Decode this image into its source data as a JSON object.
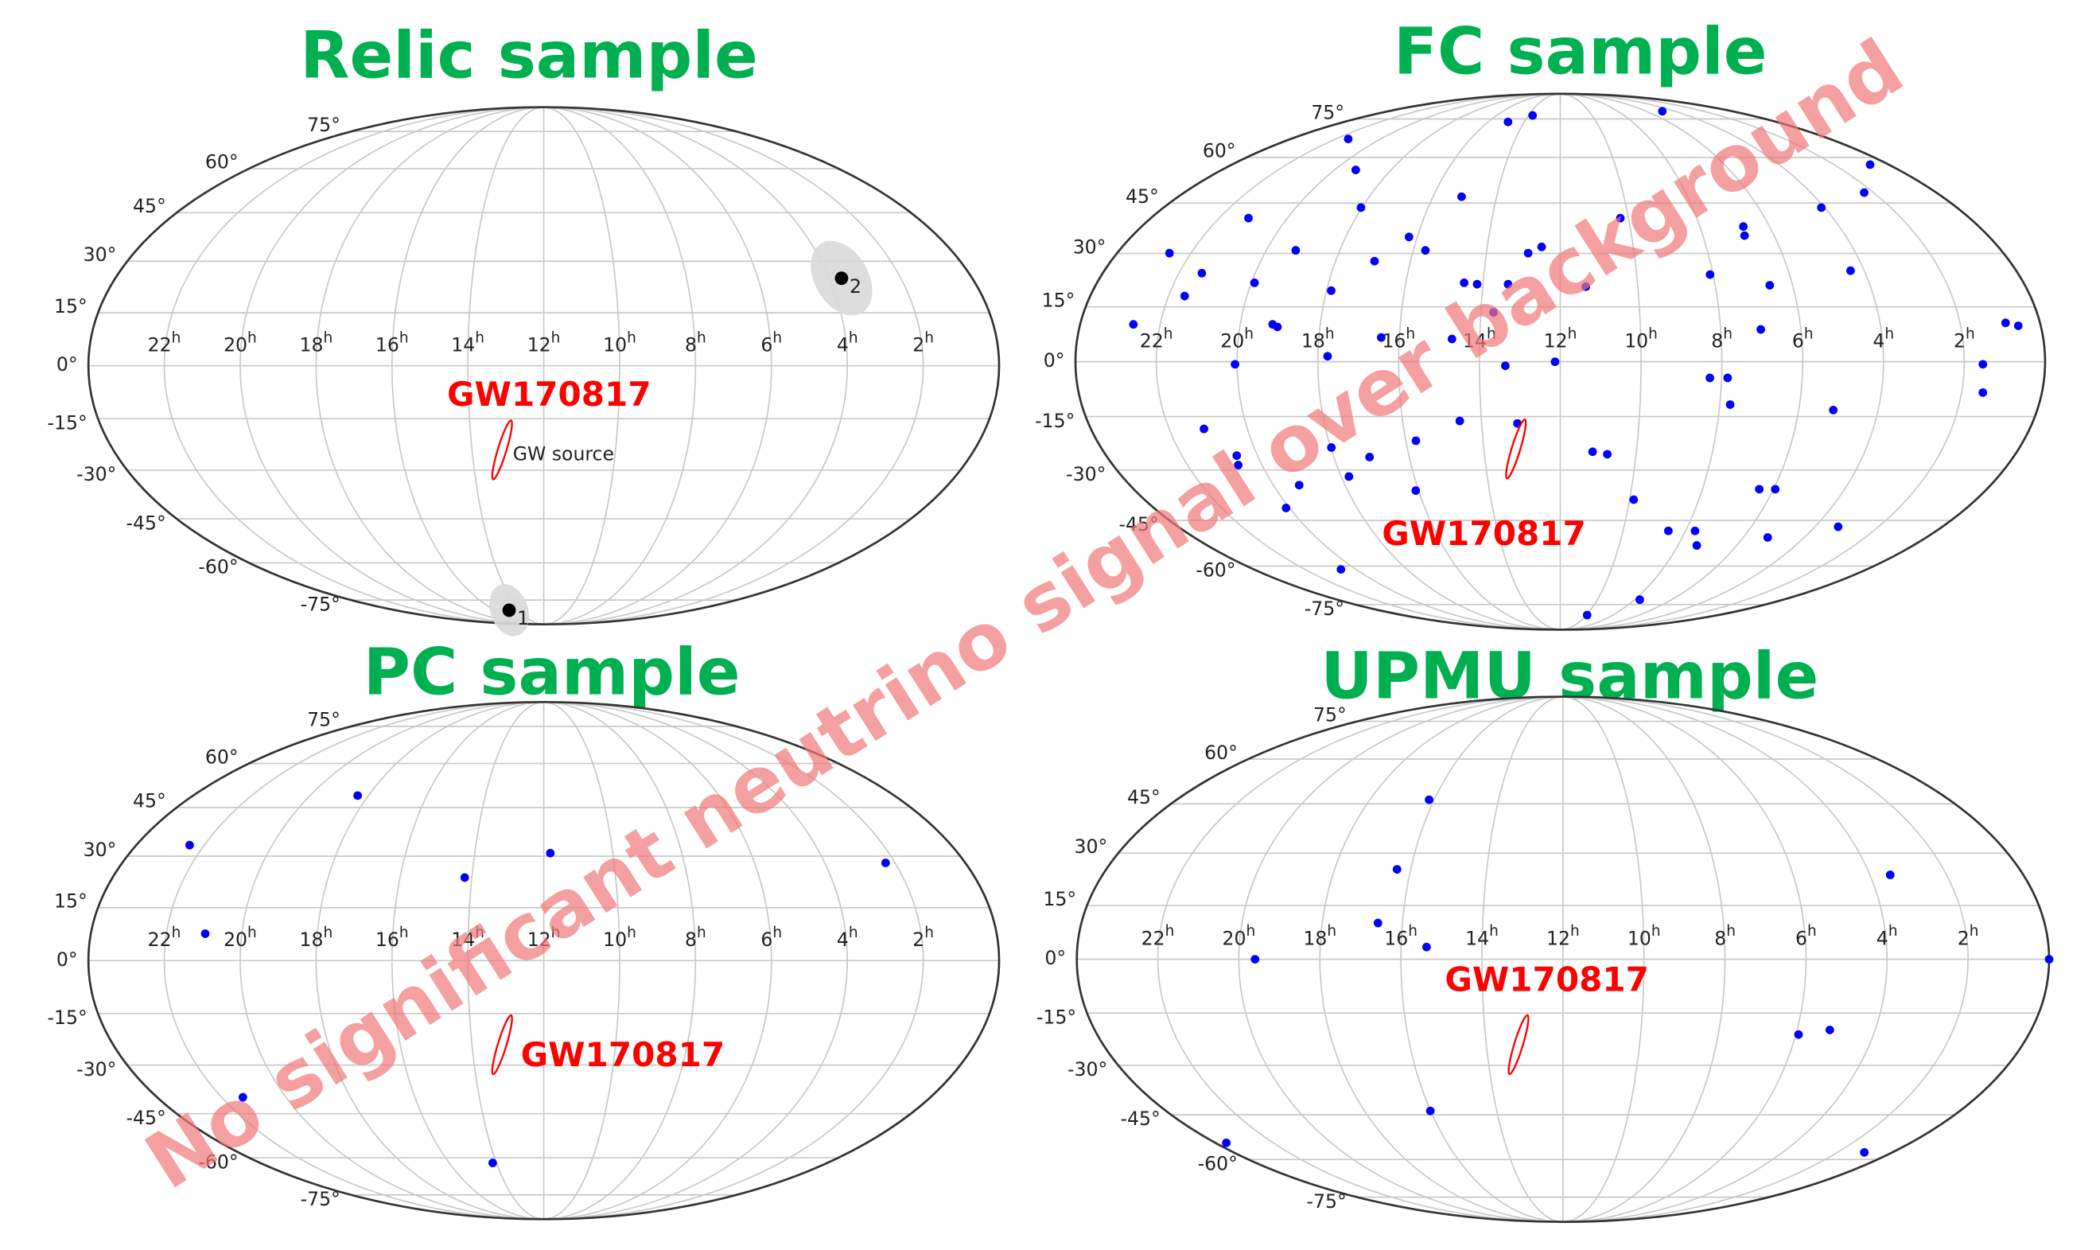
{
  "annotation": "No significant neutrino signal over background",
  "chart_data": [
    {
      "type": "scatter",
      "projection": "mollweide",
      "title": "Relic sample",
      "xlim": [
        24,
        0
      ],
      "ylim": [
        -90,
        90
      ],
      "grid": true,
      "xticks": [
        {
          "value": 22,
          "label": "22h"
        },
        {
          "value": 20,
          "label": "20h"
        },
        {
          "value": 18,
          "label": "18h"
        },
        {
          "value": 16,
          "label": "16h"
        },
        {
          "value": 14,
          "label": "14h"
        },
        {
          "value": 12,
          "label": "12h"
        },
        {
          "value": 10,
          "label": "10h"
        },
        {
          "value": 8,
          "label": "8h"
        },
        {
          "value": 6,
          "label": "6h"
        },
        {
          "value": 4,
          "label": "4h"
        },
        {
          "value": 2,
          "label": "2h"
        }
      ],
      "yticks": [
        {
          "value": 75,
          "label": "75°"
        },
        {
          "value": 60,
          "label": "60°"
        },
        {
          "value": 45,
          "label": "45°"
        },
        {
          "value": 30,
          "label": "30°"
        },
        {
          "value": 15,
          "label": "15°"
        },
        {
          "value": 0,
          "label": "0°"
        },
        {
          "value": -15,
          "label": "-15°"
        },
        {
          "value": -30,
          "label": "-30°"
        },
        {
          "value": -45,
          "label": "-45°"
        },
        {
          "value": -60,
          "label": "-60°"
        },
        {
          "value": -75,
          "label": "-75°"
        }
      ],
      "series": [
        {
          "color": "#000000",
          "x": [
            14.8,
            3.66
          ],
          "y": [
            -80,
            25
          ],
          "point_labels": [
            "1",
            "2"
          ]
        }
      ],
      "gw_source": {
        "x": 13.16,
        "y": -24,
        "name": "GW170817",
        "label": "GW source",
        "color": "#ff0000"
      }
    },
    {
      "type": "scatter",
      "projection": "mollweide",
      "title": "FC sample",
      "xlim": [
        24,
        0
      ],
      "ylim": [
        -90,
        90
      ],
      "grid": true,
      "xticks": [
        {
          "value": 22,
          "label": "22h"
        },
        {
          "value": 20,
          "label": "20h"
        },
        {
          "value": 18,
          "label": "18h"
        },
        {
          "value": 16,
          "label": "16h"
        },
        {
          "value": 14,
          "label": "14h"
        },
        {
          "value": 12,
          "label": "12h"
        },
        {
          "value": 10,
          "label": "10h"
        },
        {
          "value": 8,
          "label": "8h"
        },
        {
          "value": 6,
          "label": "6h"
        },
        {
          "value": 4,
          "label": "4h"
        },
        {
          "value": 2,
          "label": "2h"
        }
      ],
      "yticks": [
        {
          "value": 75,
          "label": "75°"
        },
        {
          "value": 60,
          "label": "60°"
        },
        {
          "value": 45,
          "label": "45°"
        },
        {
          "value": 30,
          "label": "30°"
        },
        {
          "value": 15,
          "label": "15°"
        },
        {
          "value": 0,
          "label": "0°"
        },
        {
          "value": -15,
          "label": "-15°"
        },
        {
          "value": -30,
          "label": "-30°"
        },
        {
          "value": -45,
          "label": "-45°"
        },
        {
          "value": -60,
          "label": "-60°"
        },
        {
          "value": -75,
          "label": "-75°"
        }
      ],
      "series": [
        {
          "color": "#0000ff",
          "x": [
            21.45,
            14.9,
            13.74,
            4.88,
            19.25,
            0.68,
            18.03,
            15.1,
            4.1,
            2.3,
            21.14,
            16.23,
            10.24,
            6.75,
            6.83,
            22.58,
            19.2,
            15.67,
            16.96,
            12.87,
            12.51,
            21.4,
            8.08,
            4.36,
            21.59,
            19.92,
            17.88,
            14.49,
            14.15,
            13.35,
            11.34,
            6.59,
            22.67,
            19.19,
            19.06,
            13.68,
            0.86,
            0.56,
            16.45,
            14.69,
            7.0,
            17.76,
            20.05,
            13.36,
            12.13,
            1.54,
            8.29,
            7.85,
            1.47,
            7.74,
            21.11,
            14.55,
            13.09,
            5.13,
            15.74,
            17.98,
            20.55,
            20.64,
            17.05,
            11.15,
            10.76,
            19.28,
            17.79,
            16.08,
            6.4,
            5.95,
            20.1,
            9.88,
            8.55,
            7.7,
            5.2,
            3.27,
            7.36,
            20.59,
            7.72,
            9.96
          ],
          "y": [
            66.8,
            73.7,
            76.6,
            78.6,
            55.7,
            57.5,
            43.6,
            47,
            43.6,
            48.3,
            40.4,
            34.8,
            40.4,
            37.9,
            35.2,
            30.1,
            30.9,
            30.9,
            27.8,
            30.1,
            31.9,
            24.4,
            24,
            25.1,
            18,
            21.7,
            19.5,
            21.7,
            21.3,
            21.3,
            20.6,
            21,
            10.2,
            10.2,
            9.5,
            13.5,
            10.6,
            9.8,
            6.6,
            6.2,
            8.8,
            1.5,
            -0.7,
            -1.1,
            0,
            -0.7,
            -4.4,
            -4.4,
            -8.4,
            -11.7,
            -18.4,
            -16.2,
            -16.9,
            -13.2,
            -21.7,
            -23.6,
            -25.9,
            -28.6,
            -26.3,
            -24.8,
            -25.5,
            -34.4,
            -31.9,
            -36,
            -35.6,
            -35.6,
            -41.2,
            -38.7,
            -48.3,
            -48.3,
            -50.4,
            -47,
            -53,
            -61.2,
            -72.9,
            -80
          ]
        }
      ],
      "gw_source": {
        "x": 13.16,
        "y": -24,
        "name": "GW170817",
        "color": "#ff0000"
      }
    },
    {
      "type": "scatter",
      "projection": "mollweide",
      "title": "PC sample",
      "xlim": [
        24,
        0
      ],
      "ylim": [
        -90,
        90
      ],
      "grid": true,
      "xticks": [
        {
          "value": 22,
          "label": "22h"
        },
        {
          "value": 20,
          "label": "20h"
        },
        {
          "value": 18,
          "label": "18h"
        },
        {
          "value": 16,
          "label": "16h"
        },
        {
          "value": 14,
          "label": "14h"
        },
        {
          "value": 12,
          "label": "12h"
        },
        {
          "value": 10,
          "label": "10h"
        },
        {
          "value": 8,
          "label": "8h"
        },
        {
          "value": 6,
          "label": "6h"
        },
        {
          "value": 4,
          "label": "4h"
        },
        {
          "value": 2,
          "label": "2h"
        }
      ],
      "yticks": [
        {
          "value": 75,
          "label": "75°"
        },
        {
          "value": 60,
          "label": "60°"
        },
        {
          "value": 45,
          "label": "45°"
        },
        {
          "value": 30,
          "label": "30°"
        },
        {
          "value": 15,
          "label": "15°"
        },
        {
          "value": 0,
          "label": "0°"
        },
        {
          "value": -15,
          "label": "-15°"
        },
        {
          "value": -30,
          "label": "-30°"
        },
        {
          "value": -45,
          "label": "-45°"
        },
        {
          "value": -60,
          "label": "-60°"
        },
        {
          "value": -75,
          "label": "-75°"
        }
      ],
      "series": [
        {
          "color": "#0000ff",
          "x": [
            22.43,
            18.37,
            20.97,
            14.2,
            11.81,
            2.27,
            21.34,
            14.16
          ],
          "y": [
            33.3,
            48.9,
            7.6,
            23.7,
            30.9,
            28,
            -39.8,
            -61.9
          ]
        }
      ],
      "gw_source": {
        "x": 13.16,
        "y": -24,
        "name": "GW170817",
        "color": "#ff0000"
      }
    },
    {
      "type": "scatter",
      "projection": "mollweide",
      "title": "UPMU sample",
      "xlim": [
        24,
        0
      ],
      "ylim": [
        -90,
        90
      ],
      "grid": true,
      "xticks": [
        {
          "value": 22,
          "label": "22h"
        },
        {
          "value": 20,
          "label": "20h"
        },
        {
          "value": 18,
          "label": "18h"
        },
        {
          "value": 16,
          "label": "16h"
        },
        {
          "value": 14,
          "label": "14h"
        },
        {
          "value": 12,
          "label": "12h"
        },
        {
          "value": 10,
          "label": "10h"
        },
        {
          "value": 8,
          "label": "8h"
        },
        {
          "value": 6,
          "label": "6h"
        },
        {
          "value": 4,
          "label": "4h"
        },
        {
          "value": 2,
          "label": "2h"
        }
      ],
      "yticks": [
        {
          "value": 75,
          "label": "75°"
        },
        {
          "value": 60,
          "label": "60°"
        },
        {
          "value": 45,
          "label": "45°"
        },
        {
          "value": 30,
          "label": "30°"
        },
        {
          "value": 15,
          "label": "15°"
        },
        {
          "value": 0,
          "label": "0°"
        },
        {
          "value": -15,
          "label": "-15°"
        },
        {
          "value": -30,
          "label": "-30°"
        },
        {
          "value": -45,
          "label": "-45°"
        },
        {
          "value": -60,
          "label": "-60°"
        },
        {
          "value": -75,
          "label": "-75°"
        }
      ],
      "series": [
        {
          "color": "#0000ff",
          "x": [
            16.16,
            16.36,
            3.47,
            16.61,
            15.37,
            19.6,
            0,
            5.93,
            5.16,
            16.01,
            23.62,
            1.02
          ],
          "y": [
            46.3,
            25.3,
            23.7,
            10.1,
            3.4,
            0,
            0,
            -21.1,
            -19.8,
            -43.8,
            -54.2,
            -57.5
          ]
        }
      ],
      "gw_source": {
        "x": 13.16,
        "y": -24,
        "name": "GW170817",
        "color": "#ff0000"
      }
    }
  ]
}
